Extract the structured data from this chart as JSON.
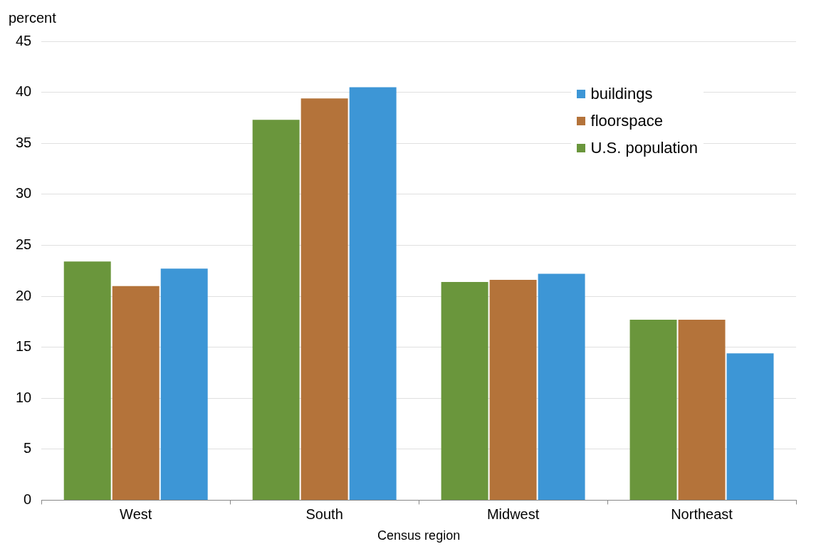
{
  "chart_data": {
    "type": "bar",
    "ylabel": "percent",
    "xlabel": "Census region",
    "categories": [
      "West",
      "South",
      "Midwest",
      "Northeast"
    ],
    "series": [
      {
        "name": "U.S. population",
        "color": "#6a963c",
        "values": [
          23.4,
          37.3,
          21.4,
          17.7
        ]
      },
      {
        "name": "floorspace",
        "color": "#b4733a",
        "values": [
          21.0,
          39.4,
          21.6,
          17.7
        ]
      },
      {
        "name": "buildings",
        "color": "#3d96d6",
        "values": [
          22.7,
          40.5,
          22.2,
          14.4
        ]
      }
    ],
    "ylim": [
      0,
      45
    ],
    "yticks": [
      0,
      5,
      10,
      15,
      20,
      25,
      30,
      35,
      40,
      45
    ],
    "grid": "y",
    "legend": "top right"
  }
}
